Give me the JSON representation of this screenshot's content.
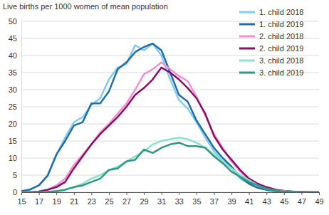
{
  "chart_data": {
    "type": "line",
    "y_label": "Live births per 1000 women of mean population",
    "x": [
      15,
      16,
      17,
      18,
      19,
      20,
      21,
      22,
      23,
      24,
      25,
      26,
      27,
      28,
      29,
      30,
      31,
      32,
      33,
      34,
      35,
      36,
      37,
      38,
      39,
      40,
      41,
      42,
      43,
      44,
      45,
      46,
      47,
      48,
      49
    ],
    "series": [
      {
        "name": "1. child 2018",
        "color": "#7fcdf0",
        "values": [
          0.3,
          0.8,
          2,
          5,
          11,
          16,
          20.5,
          22,
          25.5,
          27.5,
          33,
          36.5,
          37.5,
          43,
          41.5,
          43.5,
          40,
          33,
          27,
          24.5,
          20.5,
          16,
          12,
          9,
          7,
          4,
          2.5,
          1.3,
          0.7,
          0.3,
          0.2,
          0.1,
          0.05,
          0,
          0
        ]
      },
      {
        "name": "1. child 2019",
        "color": "#1f6ea6",
        "values": [
          0.3,
          0.8,
          2,
          4.8,
          11,
          15,
          19.5,
          20.5,
          26,
          26,
          29.5,
          36,
          38,
          41,
          42.5,
          43.5,
          41.5,
          35,
          28.5,
          26.5,
          21,
          17,
          13,
          10,
          7.5,
          4.5,
          2.5,
          1.3,
          0.7,
          0.3,
          0.2,
          0.1,
          0,
          0,
          0
        ]
      },
      {
        "name": "2. child 2018",
        "color": "#f28fd2",
        "values": [
          0,
          0,
          0.2,
          0.8,
          2,
          4,
          8,
          11,
          14,
          17.5,
          20,
          23,
          26,
          30,
          34.5,
          36,
          38,
          36,
          34,
          32.5,
          28,
          22.5,
          17,
          13,
          9,
          6,
          3.5,
          2,
          1,
          0.6,
          0.3,
          0.1,
          0.05,
          0,
          0
        ]
      },
      {
        "name": "2. child 2019",
        "color": "#8c0b68",
        "values": [
          0,
          0,
          0.2,
          0.7,
          1.5,
          3,
          7,
          10.5,
          14,
          17,
          19.5,
          22,
          25,
          28.5,
          30.5,
          33,
          36.5,
          35,
          33,
          30.5,
          27.5,
          23,
          16.5,
          12.5,
          9.5,
          6.5,
          4,
          2.5,
          1.5,
          0.8,
          0.4,
          0.2,
          0.1,
          0,
          0
        ]
      },
      {
        "name": "3. child 2018",
        "color": "#8fe0cf",
        "values": [
          0,
          0,
          0,
          0.1,
          0.3,
          0.8,
          1.5,
          2.5,
          4,
          5,
          6.5,
          7.5,
          9,
          10.5,
          12,
          14,
          15,
          15.5,
          16,
          15.5,
          14.5,
          13,
          11,
          9,
          7,
          5,
          3.5,
          2,
          1,
          0.5,
          0.3,
          0.1,
          0,
          0,
          0
        ]
      },
      {
        "name": "3. child 2019",
        "color": "#2a9a82",
        "values": [
          0,
          0,
          0,
          0.1,
          0.3,
          0.7,
          1.5,
          2,
          3,
          4,
          6.5,
          7,
          9,
          9.5,
          12.5,
          11.5,
          13,
          14,
          14.5,
          13.5,
          13.5,
          13,
          10.5,
          8.5,
          6,
          4.5,
          3,
          2,
          1,
          0.5,
          0.2,
          0.1,
          0,
          0,
          0
        ]
      }
    ],
    "xlim": [
      15,
      49
    ],
    "xticks": [
      15,
      17,
      19,
      21,
      23,
      25,
      27,
      29,
      31,
      33,
      35,
      37,
      39,
      41,
      43,
      45,
      47,
      49
    ],
    "ylim": [
      0,
      50
    ],
    "yticks": [
      0,
      5,
      10,
      15,
      20,
      25,
      30,
      35,
      40,
      45,
      50
    ],
    "grid": true,
    "legend": "top-right"
  }
}
